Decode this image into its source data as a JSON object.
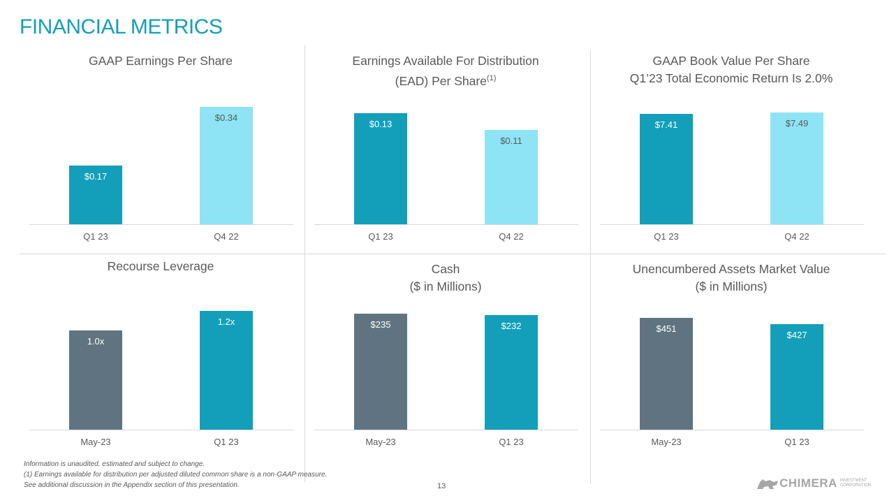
{
  "page_title": "FINANCIAL METRICS",
  "colors": {
    "teal": "#139FBA",
    "light": "#8EE4F5",
    "gray": "#5F7480"
  },
  "chart_data": [
    {
      "type": "bar",
      "title": "GAAP Earnings Per Share",
      "title2": "",
      "superscript": "",
      "categories": [
        "Q1 23",
        "Q4 22"
      ],
      "values": [
        0.17,
        0.34
      ],
      "labels": [
        "$0.17",
        "$0.34"
      ],
      "colors": [
        "teal",
        "light"
      ]
    },
    {
      "type": "bar",
      "title": "Earnings Available For Distribution",
      "title2": "(EAD) Per Share",
      "superscript": "(1)",
      "categories": [
        "Q1 23",
        "Q4 22"
      ],
      "values": [
        0.13,
        0.11
      ],
      "labels": [
        "$0.13",
        "$0.11"
      ],
      "colors": [
        "teal",
        "light"
      ]
    },
    {
      "type": "bar",
      "title": "GAAP Book Value Per Share",
      "title2": "Q1’23 Total Economic Return Is 2.0%",
      "superscript": "",
      "categories": [
        "Q1 23",
        "Q4 22"
      ],
      "values": [
        7.41,
        7.49
      ],
      "labels": [
        "$7.41",
        "$7.49"
      ],
      "colors": [
        "teal",
        "light"
      ]
    },
    {
      "type": "bar",
      "title": "Recourse Leverage",
      "title2": "",
      "superscript": "",
      "categories": [
        "May-23",
        "Q1 23"
      ],
      "values": [
        1.0,
        1.2
      ],
      "labels": [
        "1.0x",
        "1.2x"
      ],
      "colors": [
        "gray",
        "teal"
      ]
    },
    {
      "type": "bar",
      "title": "Cash",
      "title2": "($ in Millions)",
      "superscript": "",
      "categories": [
        "May-23",
        "Q1 23"
      ],
      "values": [
        235,
        232
      ],
      "labels": [
        "$235",
        "$232"
      ],
      "colors": [
        "gray",
        "teal"
      ]
    },
    {
      "type": "bar",
      "title": "Unencumbered Assets Market Value",
      "title2": "($ in Millions)",
      "superscript": "",
      "categories": [
        "May-23",
        "Q1 23"
      ],
      "values": [
        451,
        427
      ],
      "labels": [
        "$451",
        "$427"
      ],
      "colors": [
        "gray",
        "teal"
      ]
    }
  ],
  "footnotes": [
    "Information is unaudited, estimated  and subject to change.",
    "(1) Earnings available for distribution  per adjusted diluted common share  is a non-GAAP measure.",
    "See additional discussion in the Appendix section  of this presentation."
  ],
  "page_number": "13",
  "logo": {
    "name": "CHIMERA",
    "line1": "INVESTMENT",
    "line2": "CORPORATION"
  }
}
